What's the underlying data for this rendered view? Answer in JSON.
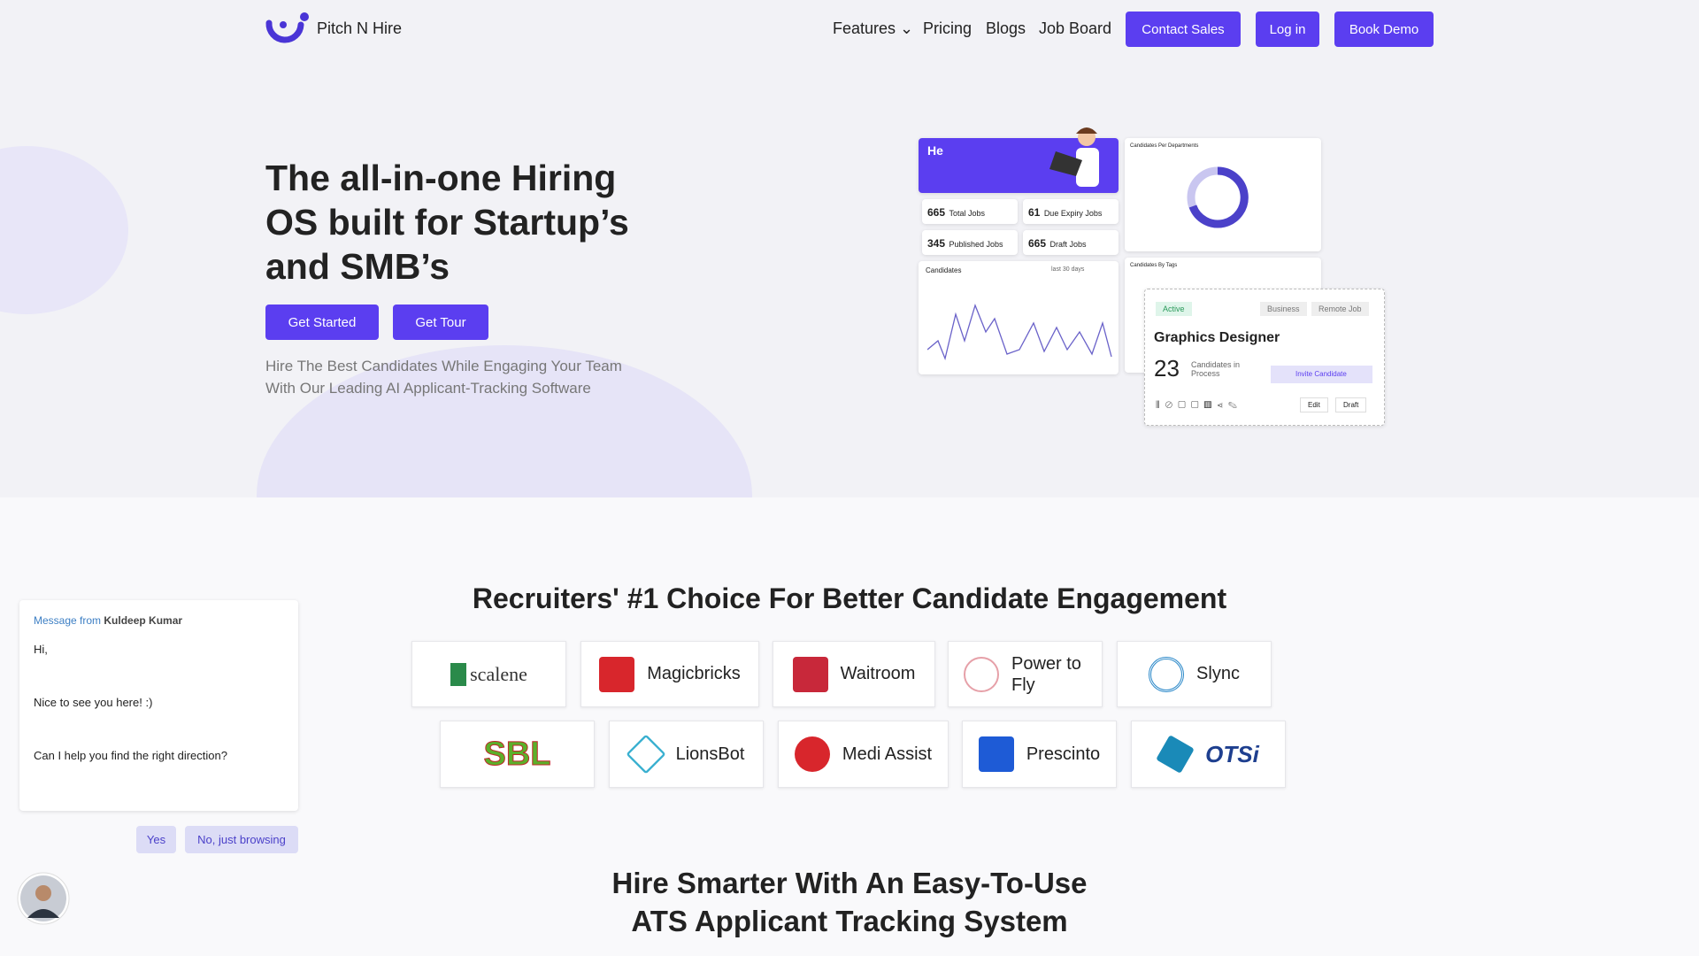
{
  "nav": {
    "brand": "Pitch N Hire",
    "links": [
      "Features",
      "Pricing",
      "Blogs",
      "Job Board"
    ],
    "buttons": [
      "Contact Sales",
      "Log in",
      "Book Demo"
    ]
  },
  "hero": {
    "title_lines": [
      "The all-in-one Hiring",
      "OS built for Startup’s",
      "and SMB’s"
    ],
    "buttons": [
      "Get Started",
      "Get Tour"
    ],
    "subtitle_lines": [
      "Hire The Best Candidates While Engaging Your Team",
      "With Our Leading AI Applicant-Tracking Software"
    ]
  },
  "dashboard": {
    "greeting": "He",
    "stats": [
      {
        "value": "665",
        "label": "Total Jobs"
      },
      {
        "value": "61",
        "label": "Due Expiry Jobs"
      },
      {
        "value": "345",
        "label": "Published Jobs"
      },
      {
        "value": "665",
        "label": "Draft Jobs"
      }
    ],
    "chart_title": "Candidates",
    "chart_range": "last 30 days",
    "dept_title": "Candidates Per Departments",
    "tags_title": "Candidates By Tags",
    "job_card": {
      "tags": [
        "Active",
        "Business",
        "Remote Job"
      ],
      "title": "Graphics Designer",
      "count": "23",
      "count_label": "Candidates in Process",
      "invite": "Invite Candidate",
      "actions": [
        "Edit",
        "Draft"
      ]
    }
  },
  "clients": {
    "title": "Recruiters' #1 Choice For Better Candidate Engagement",
    "logos": [
      [
        "scalene",
        "Magicbricks",
        "Waitroom",
        "Power to Fly",
        "Slync"
      ],
      [
        "SBL",
        "LionsBot",
        "Medi Assist",
        "Prescinto",
        "OTSi"
      ]
    ]
  },
  "chat": {
    "from_label": "Message from",
    "sender": "Kuldeep Kumar",
    "lines": [
      "Hi,",
      "Nice to see you here! :)",
      "Can I help you find the right direction?"
    ],
    "replies": [
      "Yes",
      "No, just browsing"
    ]
  },
  "section2": {
    "title_lines": [
      "Hire Smarter With An Easy-To-Use",
      "ATS Applicant Tracking System"
    ]
  }
}
